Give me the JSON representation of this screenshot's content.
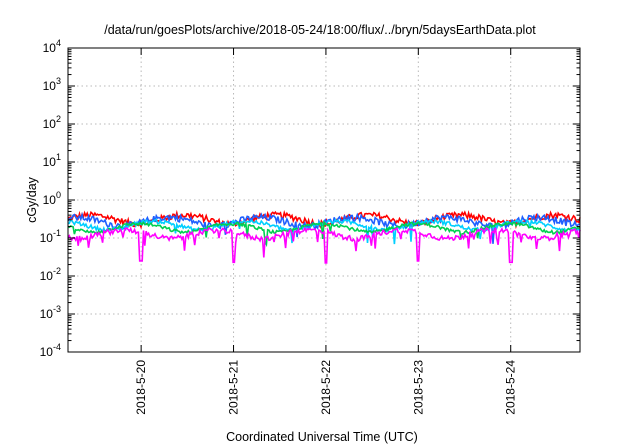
{
  "chart_data": {
    "type": "line",
    "title": "/data/run/goesPlots/archive/2018-05-24/18:00/flux/../bryn/5daysEarthData.plot",
    "xlabel": "Coordinated Universal Time (UTC)",
    "ylabel": "cGy/day",
    "yscale": "log",
    "ylim": [
      0.0001,
      10000
    ],
    "xlim": [
      "2018-05-19 05:00",
      "2018-05-24 18:00"
    ],
    "y_ticks": [
      {
        "base": "10",
        "exp": "-4"
      },
      {
        "base": "10",
        "exp": "-3"
      },
      {
        "base": "10",
        "exp": "-2"
      },
      {
        "base": "10",
        "exp": "-1"
      },
      {
        "base": "10",
        "exp": "0"
      },
      {
        "base": "10",
        "exp": "1"
      },
      {
        "base": "10",
        "exp": "2"
      },
      {
        "base": "10",
        "exp": "3"
      },
      {
        "base": "10",
        "exp": "4"
      }
    ],
    "x_ticks": [
      "2018-5-20",
      "2018-5-21",
      "2018-5-22",
      "2018-5-23",
      "2018-5-24"
    ],
    "grid": true,
    "legend": "none",
    "series": [
      {
        "color": "#ff0000",
        "level": 0.32,
        "noise": 0.1,
        "dip": 0.0
      },
      {
        "color": "#1f5fff",
        "level": 0.28,
        "noise": 0.1,
        "dip": 0.05
      },
      {
        "color": "#00cfff",
        "level": 0.22,
        "noise": 0.06,
        "dip": 0.08
      },
      {
        "color": "#00d050",
        "level": 0.19,
        "noise": 0.05,
        "dip": 0.1
      },
      {
        "color": "#ff00ff",
        "level": 0.13,
        "noise": 0.08,
        "dip": 0.35
      }
    ],
    "notable_dips": [
      {
        "date": "2018-05-20",
        "value": 0.025
      },
      {
        "date": "2018-05-21",
        "value": 0.023
      },
      {
        "date": "2018-05-22",
        "value": 0.022
      },
      {
        "date": "2018-05-23",
        "value": 0.025
      },
      {
        "date": "2018-05-24",
        "value": 0.023
      }
    ]
  }
}
